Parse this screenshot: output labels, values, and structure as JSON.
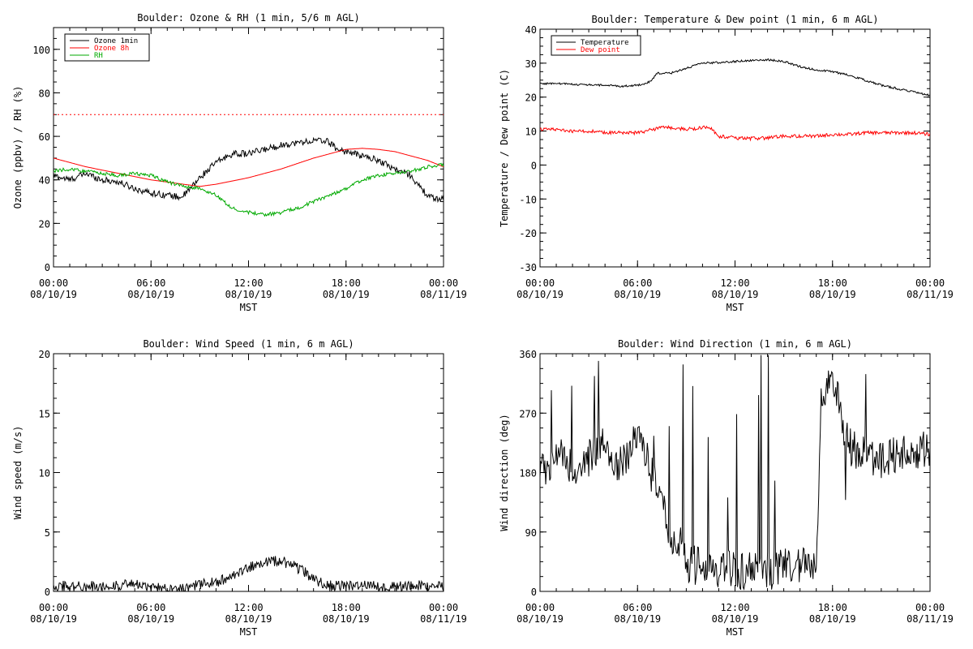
{
  "chart_data": [
    {
      "type": "line",
      "title": "Boulder: Ozone & RH (1 min, 5/6 m AGL)",
      "xlabel": "MST",
      "ylabel": "Ozone (ppbv) / RH (%)",
      "xlim": [
        0,
        24
      ],
      "ylim": [
        0,
        110
      ],
      "yticks": [
        0,
        20,
        40,
        60,
        80,
        100
      ],
      "xticks": [
        {
          "x": 0,
          "time": "00:00",
          "date": "08/10/19"
        },
        {
          "x": 6,
          "time": "06:00",
          "date": "08/10/19"
        },
        {
          "x": 12,
          "time": "12:00",
          "date": "08/10/19"
        },
        {
          "x": 18,
          "time": "18:00",
          "date": "08/10/19"
        },
        {
          "x": 24,
          "time": "00:00",
          "date": "08/11/19"
        }
      ],
      "legend_position": "top-left",
      "threshold": {
        "y": 70,
        "color": "#ff0000",
        "style": "dotted"
      },
      "series": [
        {
          "name": "Ozone 1min",
          "color": "#000000",
          "noise": 1.5,
          "x": [
            0,
            1,
            2,
            3,
            4,
            5,
            6,
            7,
            7.8,
            8.2,
            9,
            10,
            11,
            12,
            13,
            14,
            15,
            16,
            16.8,
            17.5,
            18,
            19,
            20,
            21,
            22,
            22.5,
            23,
            23.5,
            24
          ],
          "values": [
            42,
            40,
            43,
            40,
            39,
            36,
            34,
            33,
            32,
            34,
            41,
            48,
            52,
            52,
            54,
            56,
            57,
            58,
            58,
            54,
            53,
            51,
            49,
            45,
            42,
            37,
            33,
            31,
            32
          ]
        },
        {
          "name": "Ozone 8h",
          "color": "#ff0000",
          "noise": 0,
          "x": [
            0,
            2,
            4,
            6,
            8,
            9,
            10,
            12,
            14,
            16,
            17,
            18,
            19,
            20,
            21,
            22,
            23,
            24
          ],
          "values": [
            50,
            46,
            43,
            40,
            38,
            37,
            38,
            41,
            45,
            50,
            52,
            54,
            54.5,
            54,
            53,
            51,
            49,
            46
          ]
        },
        {
          "name": "RH",
          "color": "#00aa00",
          "noise": 0.8,
          "x": [
            0,
            1,
            2,
            3,
            4,
            5,
            6,
            7,
            8,
            9,
            10,
            10.5,
            11,
            12,
            13,
            14,
            15,
            16,
            17,
            18,
            19,
            20,
            21,
            22,
            23,
            24
          ],
          "values": [
            44,
            45,
            44,
            43,
            42,
            43,
            42,
            39,
            37,
            36,
            33,
            30,
            27,
            25,
            24,
            25,
            27,
            30,
            33,
            36,
            40,
            42,
            43,
            44,
            46,
            47
          ]
        }
      ]
    },
    {
      "type": "line",
      "title": "Boulder: Temperature & Dew point (1 min, 6 m AGL)",
      "xlabel": "MST",
      "ylabel": "Temperature / Dew point (C)",
      "xlim": [
        0,
        24
      ],
      "ylim": [
        -30,
        40
      ],
      "yticks": [
        -30,
        -20,
        -10,
        0,
        10,
        20,
        30,
        40
      ],
      "xticks": [
        {
          "x": 0,
          "time": "00:00",
          "date": "08/10/19"
        },
        {
          "x": 6,
          "time": "06:00",
          "date": "08/10/19"
        },
        {
          "x": 12,
          "time": "12:00",
          "date": "08/10/19"
        },
        {
          "x": 18,
          "time": "18:00",
          "date": "08/10/19"
        },
        {
          "x": 24,
          "time": "00:00",
          "date": "08/11/19"
        }
      ],
      "legend_position": "top-left",
      "series": [
        {
          "name": "Temperature",
          "color": "#000000",
          "noise": 0.3,
          "x": [
            0,
            1,
            2,
            3,
            4,
            5,
            6,
            6.8,
            7.2,
            8,
            9,
            10,
            11,
            12,
            13,
            14,
            15,
            16,
            17,
            18,
            19,
            20,
            21,
            22,
            23,
            24
          ],
          "values": [
            24,
            24,
            23.8,
            23.6,
            23.5,
            23.2,
            23.5,
            24.5,
            27,
            27,
            28.5,
            30,
            30.2,
            30.5,
            30.8,
            31,
            30.5,
            29,
            28,
            27.5,
            26.5,
            25,
            23.5,
            22.5,
            21.5,
            20.5
          ]
        },
        {
          "name": "Dew point",
          "color": "#ff0000",
          "noise": 0.5,
          "x": [
            0,
            1,
            2,
            3,
            4,
            5,
            6,
            7,
            7.5,
            8,
            9,
            10,
            10.5,
            11,
            12,
            13,
            14,
            15,
            16,
            17,
            18,
            19,
            20,
            21,
            22,
            23,
            24
          ],
          "values": [
            10.5,
            10.5,
            10,
            10,
            9.5,
            9.5,
            9.5,
            10.5,
            11.5,
            11,
            10.5,
            11,
            11,
            8.5,
            8,
            7.8,
            8,
            8.5,
            8.5,
            8.5,
            9,
            9,
            9.5,
            9.5,
            9.5,
            9.5,
            9
          ]
        }
      ]
    },
    {
      "type": "line",
      "title": "Boulder: Wind Speed (1 min, 6 m AGL)",
      "xlabel": "MST",
      "ylabel": "Wind speed (m/s)",
      "xlim": [
        0,
        24
      ],
      "ylim": [
        0,
        20
      ],
      "yticks": [
        0,
        5,
        10,
        15,
        20
      ],
      "xticks": [
        {
          "x": 0,
          "time": "00:00",
          "date": "08/10/19"
        },
        {
          "x": 6,
          "time": "06:00",
          "date": "08/10/19"
        },
        {
          "x": 12,
          "time": "12:00",
          "date": "08/10/19"
        },
        {
          "x": 18,
          "time": "18:00",
          "date": "08/10/19"
        },
        {
          "x": 24,
          "time": "00:00",
          "date": "08/11/19"
        }
      ],
      "series": [
        {
          "name": "",
          "color": "#000000",
          "noise": 0.45,
          "x": [
            0,
            2,
            4,
            5,
            6,
            8,
            10,
            11,
            12,
            13,
            14,
            15,
            15.5,
            16,
            17,
            18,
            19,
            20,
            21,
            22,
            23,
            24
          ],
          "values": [
            0.5,
            0.4,
            0.5,
            0.6,
            0.3,
            0.3,
            0.8,
            1.2,
            2,
            2.5,
            2.6,
            2,
            1.6,
            1,
            0.5,
            0.4,
            0.6,
            0.4,
            0.4,
            0.5,
            0.5,
            0.4
          ]
        }
      ]
    },
    {
      "type": "line",
      "title": "Boulder: Wind Direction (1 min, 6 m AGL)",
      "xlabel": "MST",
      "ylabel": "Wind direction (deg)",
      "xlim": [
        0,
        24
      ],
      "ylim": [
        0,
        360
      ],
      "yticks": [
        0,
        90,
        180,
        270,
        360
      ],
      "xticks": [
        {
          "x": 0,
          "time": "00:00",
          "date": "08/10/19"
        },
        {
          "x": 6,
          "time": "06:00",
          "date": "08/10/19"
        },
        {
          "x": 12,
          "time": "12:00",
          "date": "08/10/19"
        },
        {
          "x": 18,
          "time": "18:00",
          "date": "08/10/19"
        },
        {
          "x": 24,
          "time": "00:00",
          "date": "08/11/19"
        }
      ],
      "series": [
        {
          "name": "",
          "color": "#000000",
          "noise": 30,
          "x": [
            0,
            1,
            2,
            3,
            4,
            5,
            6,
            7,
            8,
            9,
            10,
            11,
            12,
            13,
            14,
            15,
            16,
            17,
            17.3,
            18,
            19,
            20,
            21,
            22,
            23,
            24
          ],
          "values": [
            180,
            210,
            190,
            200,
            220,
            190,
            240,
            170,
            90,
            40,
            40,
            35,
            30,
            35,
            30,
            35,
            40,
            45,
            300,
            320,
            220,
            210,
            200,
            210,
            210,
            220
          ]
        }
      ]
    }
  ]
}
